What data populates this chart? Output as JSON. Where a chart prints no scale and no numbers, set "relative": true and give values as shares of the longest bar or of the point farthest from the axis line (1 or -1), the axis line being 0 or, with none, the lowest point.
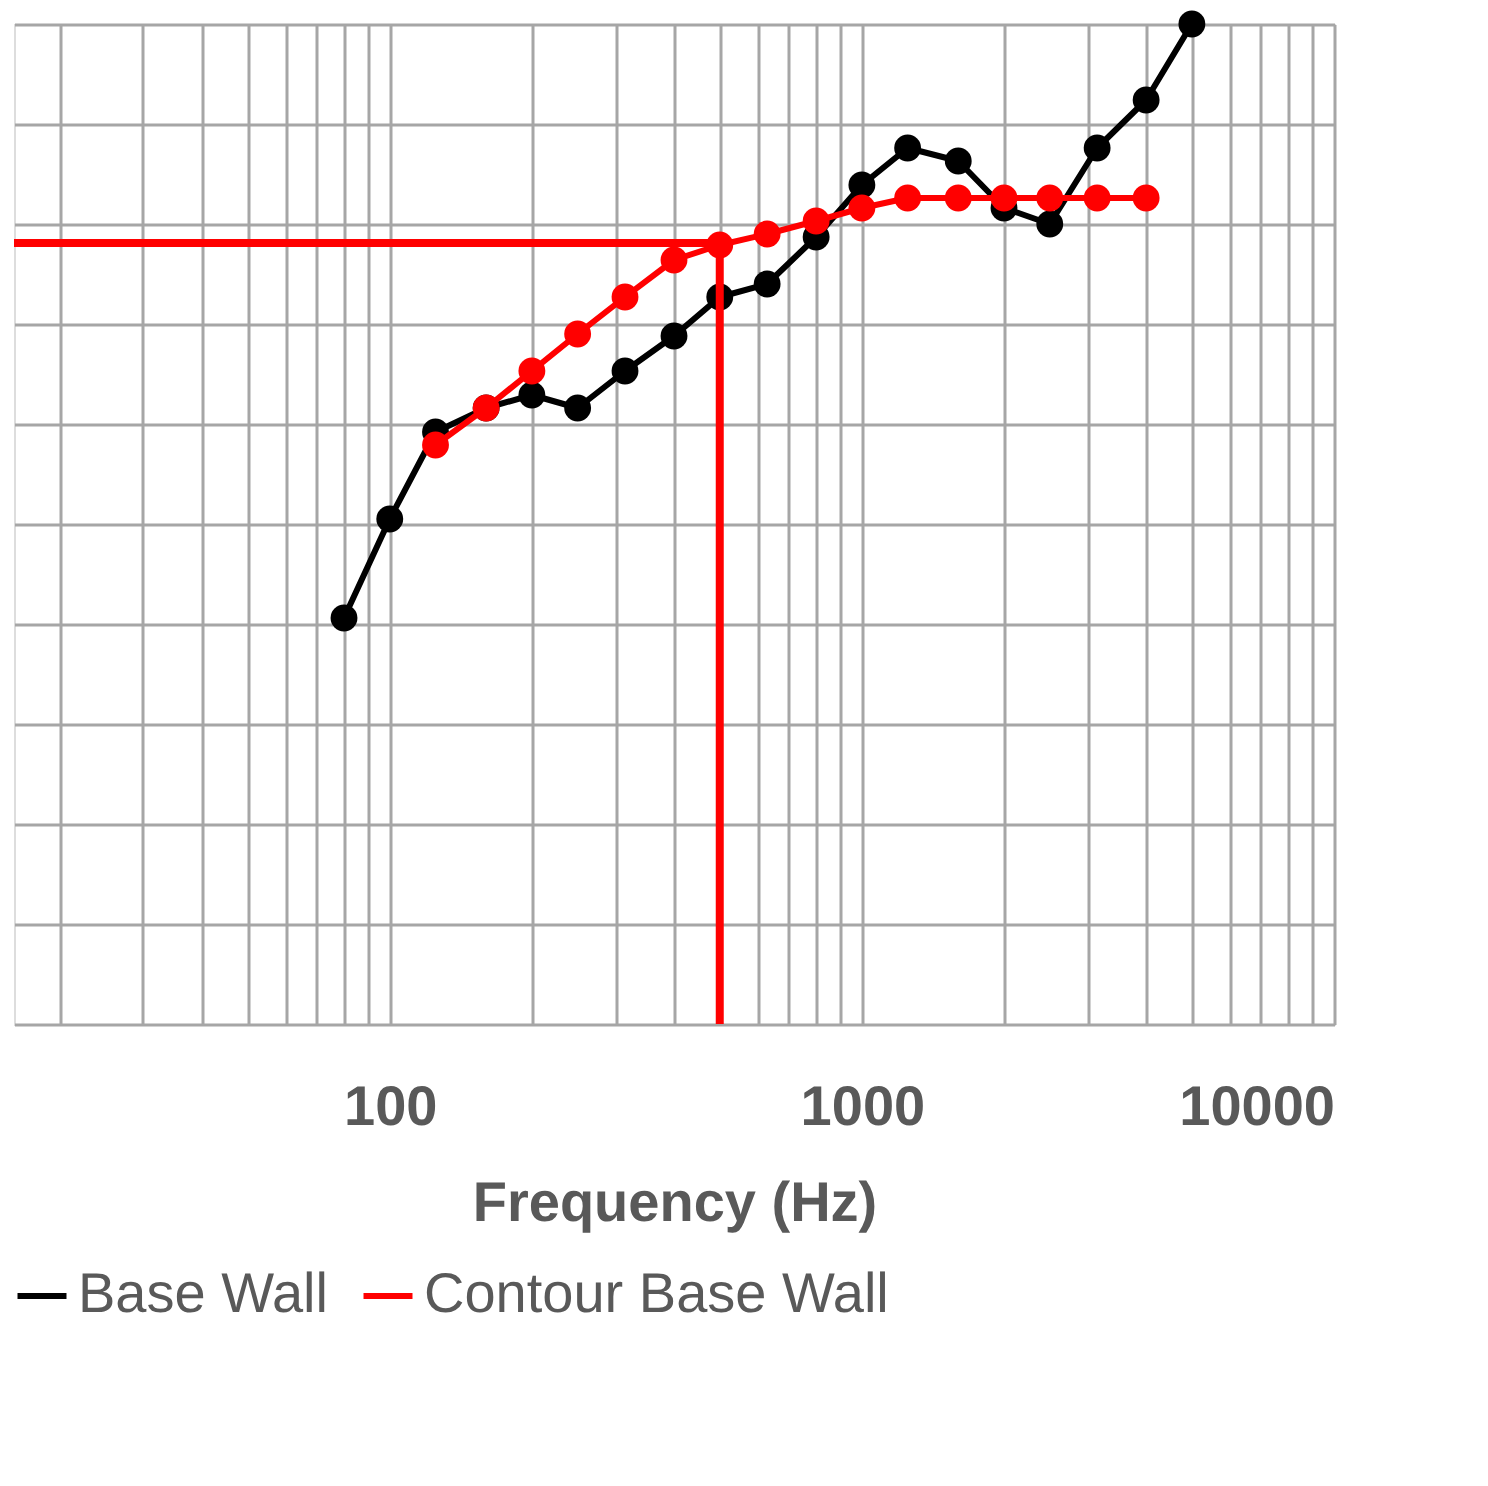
{
  "chart_data": {
    "type": "line",
    "xlabel": "Frequency (Hz)",
    "relative": true,
    "log": "x",
    "xlim": [
      16,
      10000
    ],
    "xticks": [
      {
        "value": 20,
        "label": null
      },
      {
        "value": 30,
        "label": null
      },
      {
        "value": 40,
        "label": null
      },
      {
        "value": 50,
        "label": null
      },
      {
        "value": 60,
        "label": null
      },
      {
        "value": 70,
        "label": null
      },
      {
        "value": 80,
        "label": null
      },
      {
        "value": 90,
        "label": null
      },
      100,
      {
        "value": 200,
        "label": null
      },
      {
        "value": 300,
        "label": null
      },
      {
        "value": 400,
        "label": null
      },
      {
        "value": 500,
        "label": null
      },
      {
        "value": 600,
        "label": null
      },
      {
        "value": 700,
        "label": null
      },
      {
        "value": 800,
        "label": null
      },
      {
        "value": 900,
        "label": null
      },
      1000,
      {
        "value": 2000,
        "label": null
      },
      {
        "value": 3000,
        "label": null
      },
      {
        "value": 4000,
        "label": null
      },
      {
        "value": 5000,
        "label": null
      },
      {
        "value": 6000,
        "label": null
      },
      {
        "value": 7000,
        "label": null
      },
      {
        "value": 8000,
        "label": null
      },
      {
        "value": 9000,
        "label": null
      },
      10000
    ],
    "grid": true,
    "legend": "bottom",
    "tick_labels": "x",
    "marker": "circle",
    "line_style": "solid",
    "series": [
      {
        "name": "Base Wall",
        "color": "#000000",
        "x": [
          80,
          100,
          125,
          160,
          200,
          250,
          315,
          400,
          500,
          630,
          800,
          1000,
          1250,
          1600,
          2000,
          2500,
          3150,
          4000,
          5000
        ],
        "values": [
          0.406,
          0.505,
          0.592,
          0.616,
          0.629,
          0.616,
          0.653,
          0.688,
          0.727,
          0.74,
          0.787,
          0.839,
          0.876,
          0.863,
          0.816,
          0.8,
          0.876,
          0.924,
          1
        ]
      },
      {
        "name": "Contour Base Wall",
        "color": "#ff0000",
        "x": [
          125,
          160,
          200,
          250,
          315,
          400,
          500,
          630,
          800,
          1000,
          1250,
          1600,
          2000,
          2500,
          3150,
          4000
        ],
        "values": [
          0.579,
          0.616,
          0.653,
          0.69,
          0.727,
          0.764,
          0.779,
          0.79,
          0.803,
          0.816,
          0.826,
          0.826,
          0.826,
          0.826,
          0.826,
          0.826
        ]
      }
    ],
    "ref_lines": [
      {
        "axis": "y",
        "value": 0.781,
        "color": "#ff0000",
        "line_style": "solid"
      },
      {
        "axis": "x",
        "value": 500,
        "color": "#ff0000",
        "line_style": "solid"
      }
    ]
  }
}
